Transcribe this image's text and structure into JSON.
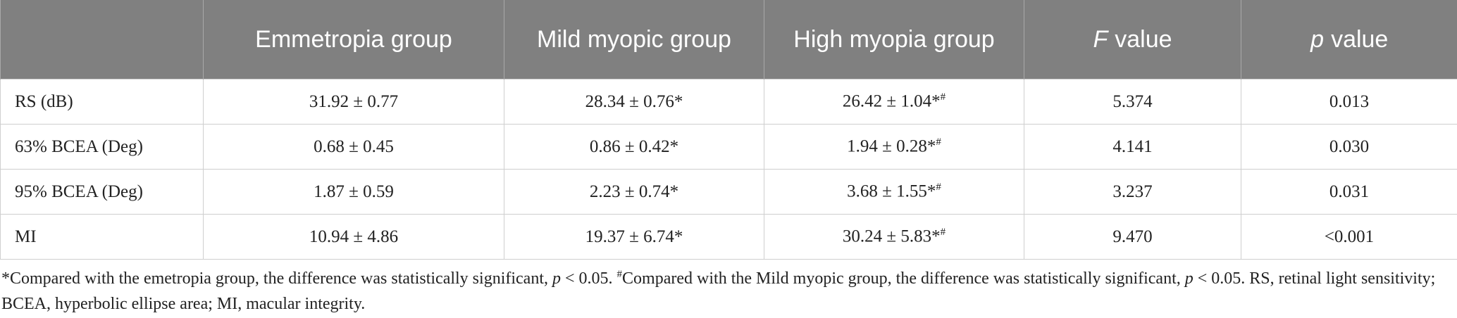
{
  "table": {
    "header": [
      "",
      "Emmetropia group",
      "Mild myopic group",
      "High myopia group",
      {
        "var": "F",
        "text": "value"
      },
      {
        "var": "p",
        "text": "value"
      }
    ],
    "rows": [
      [
        "RS (dB)",
        "31.92 ± 0.77",
        "28.34 ± 0.76*",
        {
          "text": "26.42 ± 1.04*",
          "sup": "#"
        },
        "5.374",
        "0.013"
      ],
      [
        "63% BCEA (Deg)",
        "0.68 ± 0.45",
        "0.86 ± 0.42*",
        {
          "text": "1.94 ± 0.28*",
          "sup": "#"
        },
        "4.141",
        "0.030"
      ],
      [
        "95% BCEA (Deg)",
        "1.87 ± 0.59",
        "2.23 ± 0.74*",
        {
          "text": "3.68 ± 1.55*",
          "sup": "#"
        },
        "3.237",
        "0.031"
      ],
      [
        "MI",
        "10.94 ± 4.86",
        "19.37 ± 6.74*",
        {
          "text": "30.24 ± 5.83*",
          "sup": "#"
        },
        "9.470",
        "<0.001"
      ]
    ]
  },
  "footnote": [
    {
      "text": "*Compared with the emetropia group, the difference was statistically significant, ",
      "style": "normal"
    },
    {
      "text": "p",
      "style": "italic"
    },
    {
      "text": " < 0.05. ",
      "style": "normal"
    },
    {
      "text": "#",
      "style": "sup"
    },
    {
      "text": "Compared with the Mild myopic group, the difference was statistically significant, ",
      "style": "normal"
    },
    {
      "text": "p",
      "style": "italic"
    },
    {
      "text": " < 0.05. RS, retinal light sensitivity; BCEA, hyperbolic ellipse area; MI, macular integrity.",
      "style": "normal"
    }
  ]
}
